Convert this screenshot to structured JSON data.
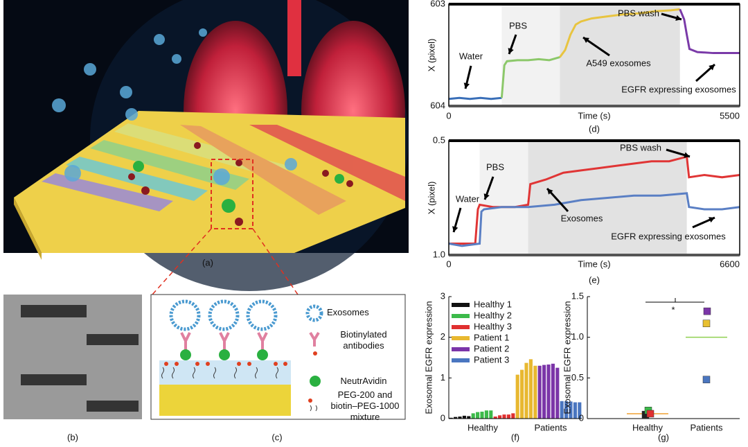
{
  "panels": {
    "a": "(a)",
    "b": "(b)",
    "c": "(c)"
  },
  "legend_c": [
    "Exosomes",
    "Biotinylated antibodies",
    "NeutrAvidin",
    "PEG-200 and biotin–PEG-1000 mixture"
  ],
  "chart_data": [
    {
      "type": "line",
      "panel_label": "(d)",
      "xlabel": "Time (s)",
      "ylabel": "X (pixel)",
      "xlim": [
        0,
        5500
      ],
      "ylim": [
        604,
        603
      ],
      "xticks": [
        0,
        5500
      ],
      "yticks": [
        603,
        604
      ],
      "shaded": [
        [
          1000,
          2100
        ],
        [
          2100,
          4370
        ]
      ],
      "series": [
        {
          "color": "#3a6fb8",
          "x": [
            0,
            200,
            400,
            600,
            800,
            1000
          ],
          "values": [
            603.93,
            603.92,
            603.93,
            603.92,
            603.93,
            603.92
          ]
        },
        {
          "color": "#8cc86a",
          "x": [
            1000,
            1050,
            1100,
            1300,
            1500,
            1700,
            1900,
            2100
          ],
          "values": [
            603.92,
            603.6,
            603.56,
            603.55,
            603.55,
            603.54,
            603.55,
            603.52
          ]
        },
        {
          "color": "#e8c440",
          "x": [
            2100,
            2200,
            2300,
            2400,
            2500,
            2700,
            3000,
            3300,
            3600,
            3900,
            4200,
            4370
          ],
          "values": [
            603.52,
            603.45,
            603.3,
            603.2,
            603.17,
            603.14,
            603.12,
            603.1,
            603.09,
            603.07,
            603.06,
            603.05
          ]
        },
        {
          "color": "#7a3aa8",
          "x": [
            4370,
            4450,
            4500,
            4550,
            4700,
            5000,
            5300,
            5500
          ],
          "values": [
            603.05,
            603.15,
            603.3,
            603.44,
            603.47,
            603.48,
            603.48,
            603.48
          ]
        }
      ],
      "annotations": [
        "Water",
        "PBS",
        "A549 exosomes",
        "PBS wash",
        "EGFR expressing exosomes"
      ]
    },
    {
      "type": "line",
      "panel_label": "(e)",
      "xlabel": "Time (s)",
      "ylabel": "X (pixel)",
      "xlim": [
        0,
        6600
      ],
      "ylim": [
        1,
        0.5
      ],
      "xticks": [
        0,
        6600
      ],
      "yticks": [
        0.5,
        {
          "value": 1,
          "label": "1.0"
        }
      ],
      "shaded": [
        [
          700,
          1800
        ],
        [
          1800,
          5400
        ]
      ],
      "series": [
        {
          "color": "#e03535",
          "x": [
            0,
            300,
            600,
            660,
            700,
            1000,
            1500,
            1800,
            1850,
            2200,
            2600,
            3000,
            3400,
            3800,
            4200,
            4600,
            5000,
            5400,
            5450,
            5800,
            6200,
            6600
          ],
          "values": [
            0.95,
            0.95,
            0.95,
            0.8,
            0.78,
            0.79,
            0.79,
            0.78,
            0.69,
            0.67,
            0.64,
            0.63,
            0.62,
            0.61,
            0.6,
            0.59,
            0.59,
            0.57,
            0.66,
            0.65,
            0.66,
            0.65
          ]
        },
        {
          "color": "#5a7fc4",
          "x": [
            0,
            300,
            700,
            740,
            800,
            1200,
            1800,
            2400,
            3000,
            3600,
            4200,
            4800,
            5400,
            5450,
            5800,
            6200,
            6600
          ],
          "values": [
            0.95,
            0.96,
            0.95,
            0.81,
            0.8,
            0.79,
            0.79,
            0.78,
            0.76,
            0.75,
            0.74,
            0.74,
            0.73,
            0.79,
            0.8,
            0.8,
            0.79
          ]
        }
      ],
      "annotations": [
        "Water",
        "PBS",
        "Exosomes",
        "PBS wash",
        "EGFR expressing exosomes"
      ]
    },
    {
      "type": "bar",
      "panel_label": "(f)",
      "ylabel": "Exosomal EGFR expression",
      "ylim": [
        0,
        3
      ],
      "yticks": [
        0,
        1,
        2,
        3
      ],
      "group_labels": [
        "Healthy",
        "Patients"
      ],
      "series": [
        {
          "name": "Healthy 1",
          "color": "#111111",
          "values": [
            0.02,
            0.04,
            0.05,
            0.07,
            0.06
          ]
        },
        {
          "name": "Healthy 2",
          "color": "#3cba4a",
          "values": [
            0.13,
            0.16,
            0.17,
            0.2,
            0.2
          ]
        },
        {
          "name": "Healthy 3",
          "color": "#e03030",
          "values": [
            0.05,
            0.08,
            0.1,
            0.1,
            0.13
          ]
        },
        {
          "name": "Patient 1",
          "color": "#e8b830",
          "values": [
            1.08,
            1.2,
            1.37,
            1.46,
            1.3
          ]
        },
        {
          "name": "Patient 2",
          "color": "#7b35a8",
          "values": [
            1.3,
            1.32,
            1.33,
            1.35,
            1.25
          ]
        },
        {
          "name": "Patient 3",
          "color": "#4a76c0",
          "values": [
            0.43,
            0.43,
            0.42,
            0.4,
            0.4
          ]
        }
      ]
    },
    {
      "type": "scatter",
      "panel_label": "(g)",
      "ylabel": "Exosomal EGFR expression",
      "ylim": [
        0,
        1.5
      ],
      "yticks": [
        0,
        0.5,
        {
          "value": 1,
          "label": "1.0"
        },
        1.5
      ],
      "categories": [
        "Healthy",
        "Patients"
      ],
      "significance": "*",
      "means": [
        0.06,
        1.0
      ],
      "mean_colors": [
        "#f0a030",
        "#8fd04f"
      ],
      "series": [
        {
          "color": "#222222",
          "values": [
            0.05,
            null
          ]
        },
        {
          "color": "#3cba4a",
          "values": [
            0.1,
            null
          ]
        },
        {
          "color": "#e03030",
          "values": [
            0.06,
            null
          ]
        },
        {
          "color": "#e8c030",
          "values": [
            null,
            1.17
          ]
        },
        {
          "color": "#7b35a8",
          "values": [
            null,
            1.32
          ]
        },
        {
          "color": "#4a76c0",
          "values": [
            null,
            0.48
          ]
        }
      ]
    }
  ]
}
